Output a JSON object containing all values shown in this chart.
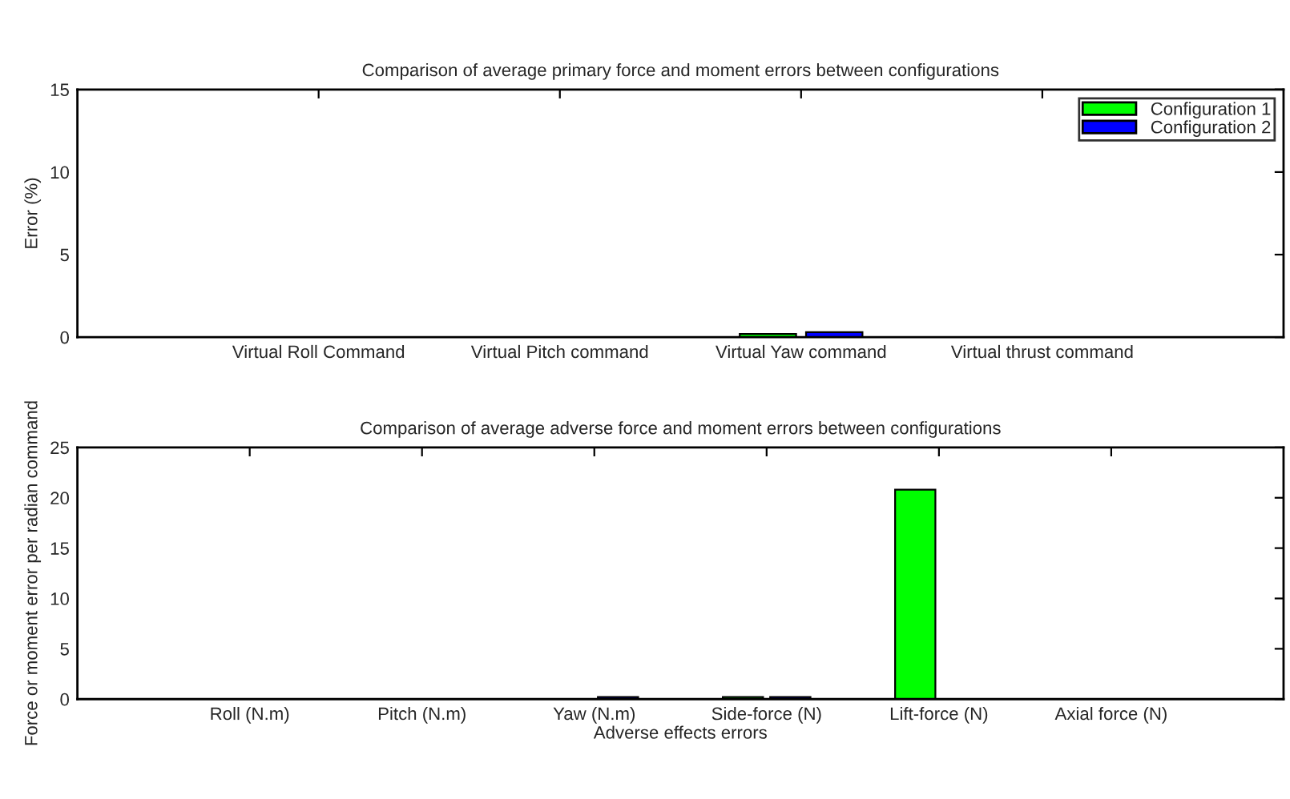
{
  "chart_data": [
    {
      "type": "bar",
      "title": "Comparison of average primary force and moment errors between configurations",
      "ylabel": "Error (%)",
      "categories": [
        "Virtual Roll Command",
        "Virtual Pitch command",
        "Virtual Yaw command",
        "Virtual thrust command"
      ],
      "series": [
        {
          "name": "Configuration 1",
          "color": "#00ff00",
          "values": [
            0,
            0,
            0.2,
            0
          ]
        },
        {
          "name": "Configuration 2",
          "color": "#0000ff",
          "values": [
            0,
            0,
            0.3,
            0
          ]
        }
      ],
      "ylim": [
        0,
        15
      ],
      "yticks": [
        0,
        5,
        10,
        15
      ],
      "legend": "top right",
      "grid": false
    },
    {
      "type": "bar",
      "title": "Comparison of average adverse force and moment errors between configurations",
      "xlabel": "Adverse effects errors",
      "ylabel": "Force or moment error per radian command",
      "categories": [
        "Roll (N.m)",
        "Pitch (N.m)",
        "Yaw (N.m)",
        "Side-force (N)",
        "Lift-force (N)",
        "Axial force (N)"
      ],
      "series": [
        {
          "color": "#00ff00",
          "values": [
            0,
            0,
            0,
            0.2,
            20.8,
            0
          ]
        },
        {
          "color": "#0000ff",
          "values": [
            0,
            0,
            0.2,
            0.2,
            0,
            0
          ]
        }
      ],
      "ylim": [
        0,
        25
      ],
      "yticks": [
        0,
        5,
        10,
        15,
        20,
        25
      ],
      "grid": false
    }
  ]
}
